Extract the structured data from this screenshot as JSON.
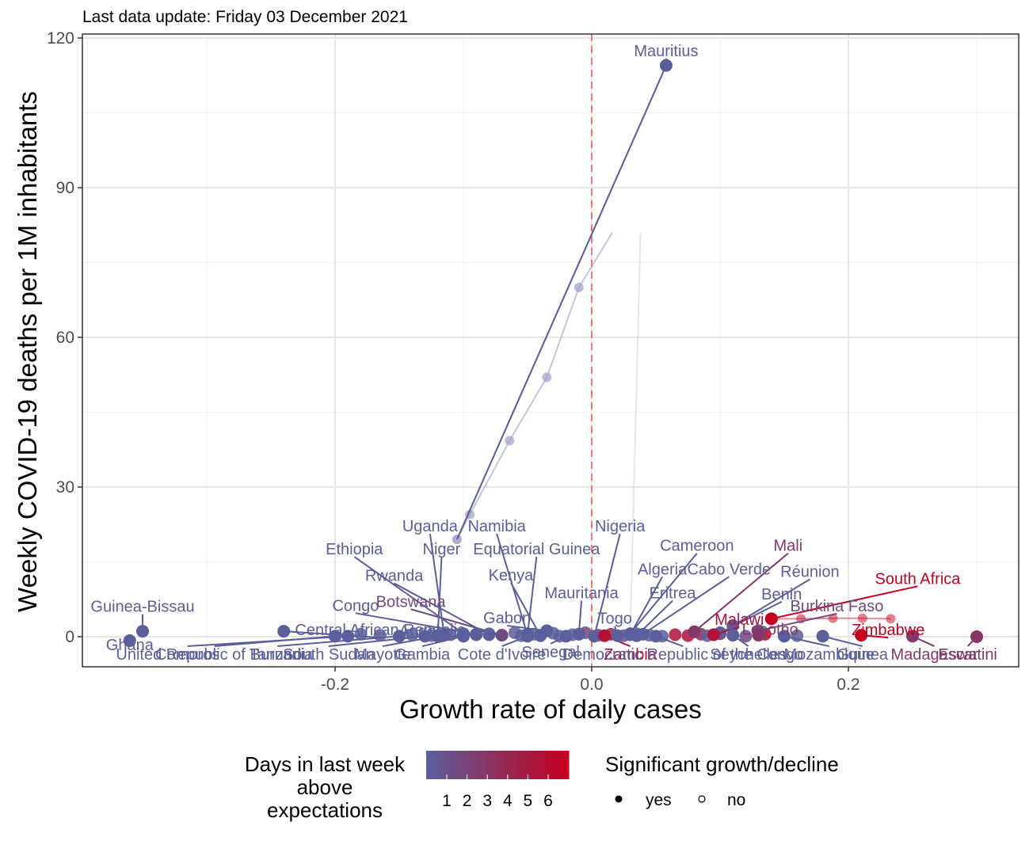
{
  "subtitle": "Last data update: Friday 03 December 2021",
  "chart_data": {
    "type": "scatter",
    "title": "",
    "subtitle": "Last data update: Friday 03 December 2021",
    "xlabel": "Growth rate of daily cases",
    "ylabel": "Weekly COVID-19 deaths per 1M inhabitants",
    "xlim": [
      -0.2,
      0.2
    ],
    "ylim": [
      0,
      120
    ],
    "x_ticks": [
      {
        "v": -0.2,
        "label": "-0.2"
      },
      {
        "v": 0.0,
        "label": "0.0"
      },
      {
        "v": 0.2,
        "label": "0.2"
      }
    ],
    "y_ticks": [
      {
        "v": 0,
        "label": "0"
      },
      {
        "v": 30,
        "label": "30"
      },
      {
        "v": 60,
        "label": "60"
      },
      {
        "v": 90,
        "label": "90"
      },
      {
        "v": 120,
        "label": "120"
      }
    ],
    "grid": true,
    "reference_line": {
      "x": 0,
      "color": "#f8766d",
      "style": "dashed"
    },
    "color_scale": {
      "low": "#5a5e9a",
      "high": "#c4001f"
    },
    "countries": [
      {
        "name": "Mauritius",
        "x": 0.058,
        "y": 114.5,
        "days": 1,
        "trail": [
          [
            0.058,
            114.5
          ],
          [
            -0.105,
            19.5
          ]
        ],
        "label_x": 0.058,
        "label_y": 117.5
      },
      {
        "name": "Guinea-Bissau",
        "x": -0.35,
        "y": 1.1,
        "days": 1,
        "label_x": -0.35,
        "label_y": 6.1
      },
      {
        "name": "Ghana",
        "x": -0.36,
        "y": -0.8,
        "days": 1,
        "label_x": -0.36,
        "label_y": -1.6
      },
      {
        "name": "Central African Republic",
        "x": -0.24,
        "y": 1.1,
        "days": 1,
        "label_x": -0.165,
        "label_y": 1.4
      },
      {
        "name": "Congo",
        "x": -0.09,
        "y": 0.5,
        "days": 1,
        "label_x": -0.184,
        "label_y": 6.3
      },
      {
        "name": "Botswana",
        "x": -0.07,
        "y": 0.3,
        "days": 2,
        "label_x": -0.141,
        "label_y": 7.1
      },
      {
        "name": "Rwanda",
        "x": -0.08,
        "y": 0.4,
        "days": 1,
        "label_x": -0.154,
        "label_y": 12.3
      },
      {
        "name": "Ethiopia",
        "x": -0.1,
        "y": 0.6,
        "days": 1,
        "label_x": -0.185,
        "label_y": 17.6
      },
      {
        "name": "Uganda",
        "x": -0.115,
        "y": 0.4,
        "days": 1,
        "label_x": -0.126,
        "label_y": 22.2
      },
      {
        "name": "Niger",
        "x": -0.12,
        "y": 0.2,
        "days": 1,
        "label_x": -0.117,
        "label_y": 17.6
      },
      {
        "name": "Namibia",
        "x": -0.05,
        "y": 0.3,
        "days": 1,
        "label_x": -0.074,
        "label_y": 22.2
      },
      {
        "name": "Equatorial Guinea",
        "x": -0.05,
        "y": 0.5,
        "days": 1,
        "label_x": -0.043,
        "label_y": 17.6
      },
      {
        "name": "Kenya",
        "x": -0.04,
        "y": 0.2,
        "days": 1,
        "label_x": -0.063,
        "label_y": 12.4
      },
      {
        "name": "Nigeria",
        "x": 0.002,
        "y": 0.1,
        "days": 1,
        "label_x": 0.022,
        "label_y": 22.2
      },
      {
        "name": "Mauritania",
        "x": -0.01,
        "y": 0.5,
        "days": 1,
        "label_x": -0.008,
        "label_y": 8.8
      },
      {
        "name": "Gabon",
        "x": -0.035,
        "y": 1.2,
        "days": 1,
        "label_x": -0.066,
        "label_y": 3.8
      },
      {
        "name": "Angola",
        "x": -0.09,
        "y": 0.4,
        "days": 1,
        "label_x": -0.131,
        "label_y": 1.2
      },
      {
        "name": "Cameroon",
        "x": 0.03,
        "y": 0.6,
        "days": 1,
        "label_x": 0.082,
        "label_y": 18.3
      },
      {
        "name": "Algeria",
        "x": 0.03,
        "y": 0.4,
        "days": 1,
        "label_x": 0.055,
        "label_y": 13.6
      },
      {
        "name": "Cabo Verde",
        "x": 0.04,
        "y": 0.5,
        "days": 1,
        "label_x": 0.107,
        "label_y": 13.6
      },
      {
        "name": "Eritrea",
        "x": 0.035,
        "y": 0.2,
        "days": 1,
        "label_x": 0.063,
        "label_y": 8.8
      },
      {
        "name": "Mali",
        "x": 0.08,
        "y": 1.0,
        "days": 3,
        "label_x": 0.153,
        "label_y": 18.3
      },
      {
        "name": "Réunion",
        "x": 0.11,
        "y": 2.2,
        "days": 1,
        "label_x": 0.17,
        "label_y": 13.1
      },
      {
        "name": "South Africa",
        "x": 0.14,
        "y": 3.6,
        "days": 6,
        "trail": [
          [
            0.14,
            3.6
          ],
          [
            0.163,
            3.6
          ],
          [
            0.188,
            3.7
          ],
          [
            0.211,
            3.7
          ],
          [
            0.233,
            3.6
          ]
        ],
        "label_x": 0.254,
        "label_y": 11.7
      },
      {
        "name": "Benin",
        "x": 0.1,
        "y": 0.8,
        "days": 1,
        "label_x": 0.148,
        "label_y": 8.6
      },
      {
        "name": "Burkina Faso",
        "x": 0.13,
        "y": 1.2,
        "days": 2,
        "label_x": 0.191,
        "label_y": 6.2
      },
      {
        "name": "Malawi",
        "x": 0.095,
        "y": 0.4,
        "days": 5,
        "label_x": 0.115,
        "label_y": 3.5
      },
      {
        "name": "Lesotho",
        "x": 0.13,
        "y": 0.3,
        "days": 3,
        "label_x": 0.139,
        "label_y": 1.5
      },
      {
        "name": "Zimbabwe",
        "x": 0.21,
        "y": 0.3,
        "days": 6,
        "label_x": 0.231,
        "label_y": 1.4
      },
      {
        "name": "Madagascar",
        "x": 0.25,
        "y": 0.1,
        "days": 3,
        "label_x": 0.267,
        "label_y": -3.5
      },
      {
        "name": "Eswatini",
        "x": 0.3,
        "y": 0.0,
        "days": 3,
        "label_x": 0.293,
        "label_y": -3.5
      },
      {
        "name": "United Republic of Tanzania",
        "x": -0.2,
        "y": 0.1,
        "days": 1,
        "label_x": -0.294,
        "label_y": -3.5
      },
      {
        "name": "Comoros",
        "x": -0.19,
        "y": 0.1,
        "days": 1,
        "label_x": -0.315,
        "label_y": -3.5
      },
      {
        "name": "Burundi",
        "x": -0.15,
        "y": 0.1,
        "days": 1,
        "label_x": -0.245,
        "label_y": -3.5
      },
      {
        "name": "Zambia",
        "x": 0.01,
        "y": 0.2,
        "days": 5,
        "label_x": 0.03,
        "label_y": -3.5
      },
      {
        "name": "Mayotte",
        "x": -0.12,
        "y": 0.1,
        "days": 1,
        "label_x": -0.163,
        "label_y": -3.5
      },
      {
        "name": "Gambia",
        "x": -0.1,
        "y": 0.1,
        "days": 1,
        "label_x": -0.132,
        "label_y": -3.5
      },
      {
        "name": "South Sudan",
        "x": -0.13,
        "y": 0.1,
        "days": 1,
        "label_x": -0.205,
        "label_y": -3.5
      },
      {
        "name": "Cote d'Ivoire",
        "x": -0.05,
        "y": 0.1,
        "days": 1,
        "label_x": -0.07,
        "label_y": -3.5
      },
      {
        "name": "Senegal",
        "x": -0.02,
        "y": 0.1,
        "days": 1,
        "label_x": -0.032,
        "label_y": -3.0
      },
      {
        "name": "Togo",
        "x": 0.02,
        "y": 0.2,
        "days": 1,
        "label_x": 0.018,
        "label_y": 3.7
      },
      {
        "name": "Guinea",
        "x": 0.18,
        "y": 0.1,
        "days": 1,
        "label_x": 0.211,
        "label_y": -3.5
      },
      {
        "name": "Democratic Republic of the Congo",
        "x": 0.05,
        "y": 0.1,
        "days": 1,
        "label_x": 0.071,
        "label_y": -3.5
      },
      {
        "name": "Seychelles",
        "x": 0.11,
        "y": 0.3,
        "days": 1,
        "label_x": 0.122,
        "label_y": -3.5
      },
      {
        "name": "Mozambique",
        "x": 0.15,
        "y": 0.1,
        "days": 1,
        "label_x": 0.185,
        "label_y": -3.5
      }
    ],
    "legend": {
      "color_title": "Days in last week above expectations",
      "color_ticks": [
        "1",
        "2",
        "3",
        "4",
        "5",
        "6"
      ],
      "shape_title": "Significant growth/decline",
      "shape_items": [
        "yes",
        "no"
      ],
      "placement": "bottom"
    }
  }
}
